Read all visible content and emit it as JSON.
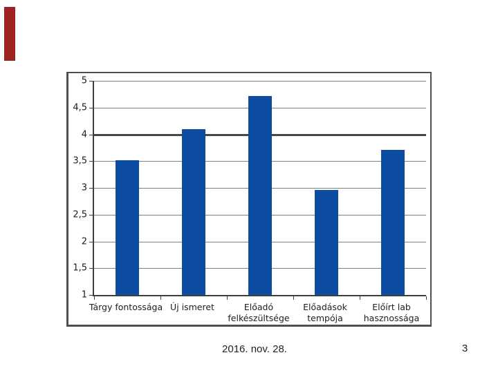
{
  "slide": {
    "footer_date": "2016. nov. 28.",
    "page_number": "3",
    "accent_color": "#9B2423"
  },
  "chart_data": {
    "type": "bar",
    "title": "",
    "xlabel": "",
    "ylabel": "",
    "categories": [
      "Tárgy fontossága",
      "Új ismeret",
      "Előadó\nfelkészültsége",
      "Előadások\ntempója",
      "Előírt lab\nhasznossága"
    ],
    "values": [
      3.52,
      4.1,
      4.71,
      2.96,
      3.71
    ],
    "ylim": [
      1,
      5
    ],
    "ytick_labels": [
      "5",
      "4,5",
      "4",
      "3,5",
      "3",
      "2,5",
      "2",
      "1,5",
      "1"
    ],
    "ytick_values": [
      5,
      4.5,
      4,
      3.5,
      3,
      2.5,
      2,
      1.5,
      1
    ],
    "major_gridline_value": 4,
    "bar_color": "#0D4DA1",
    "grid": true,
    "legend": false,
    "decimal_separator": "comma"
  }
}
